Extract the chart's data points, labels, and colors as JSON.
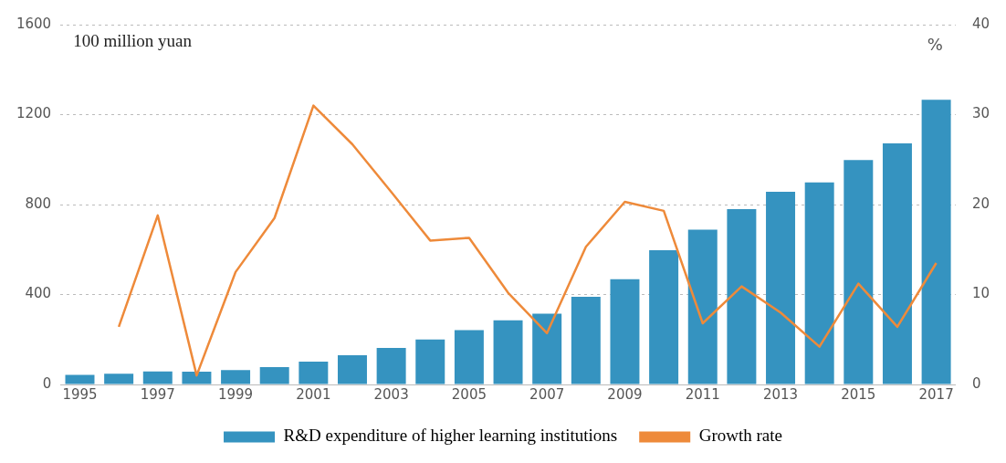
{
  "chart_data": {
    "type": "bar",
    "ylabel": "100 million yuan",
    "y2label": "%",
    "categories": [
      "1995",
      null,
      "1997",
      null,
      "1999",
      null,
      "2001",
      null,
      "2003",
      null,
      "2005",
      null,
      "2007",
      null,
      "2009",
      null,
      "2011",
      null,
      "2013",
      null,
      "2015",
      null,
      "2017"
    ],
    "series": [
      {
        "name": "R&D expenditure of higher learning institutions",
        "color": "#3593c0",
        "values": [
          43,
          48,
          58,
          57,
          64,
          77,
          102,
          130,
          162,
          200,
          242,
          285,
          315,
          390,
          468,
          597,
          688,
          780,
          857,
          898,
          998,
          1072,
          1266
        ]
      },
      {
        "name": "Growth rate",
        "type": "line",
        "axis": "y2",
        "color": "#ee8a3a",
        "values": [
          null,
          6.4,
          18.8,
          1.0,
          12.5,
          18.5,
          31,
          26.7,
          21.4,
          16.0,
          16.3,
          10.2,
          5.7,
          15.3,
          20.3,
          19.3,
          6.8,
          10.9,
          8.0,
          4.2,
          11.2,
          6.4,
          13.5
        ]
      }
    ],
    "ylim": [
      0,
      1600
    ],
    "yticks": [
      0,
      400,
      800,
      1200,
      1600
    ],
    "y2lim": [
      0,
      40
    ],
    "y2ticks": [
      0,
      10,
      20,
      30,
      40
    ],
    "grid": "y",
    "legend": "bottom",
    "marker": "none",
    "line_style": "solid"
  }
}
